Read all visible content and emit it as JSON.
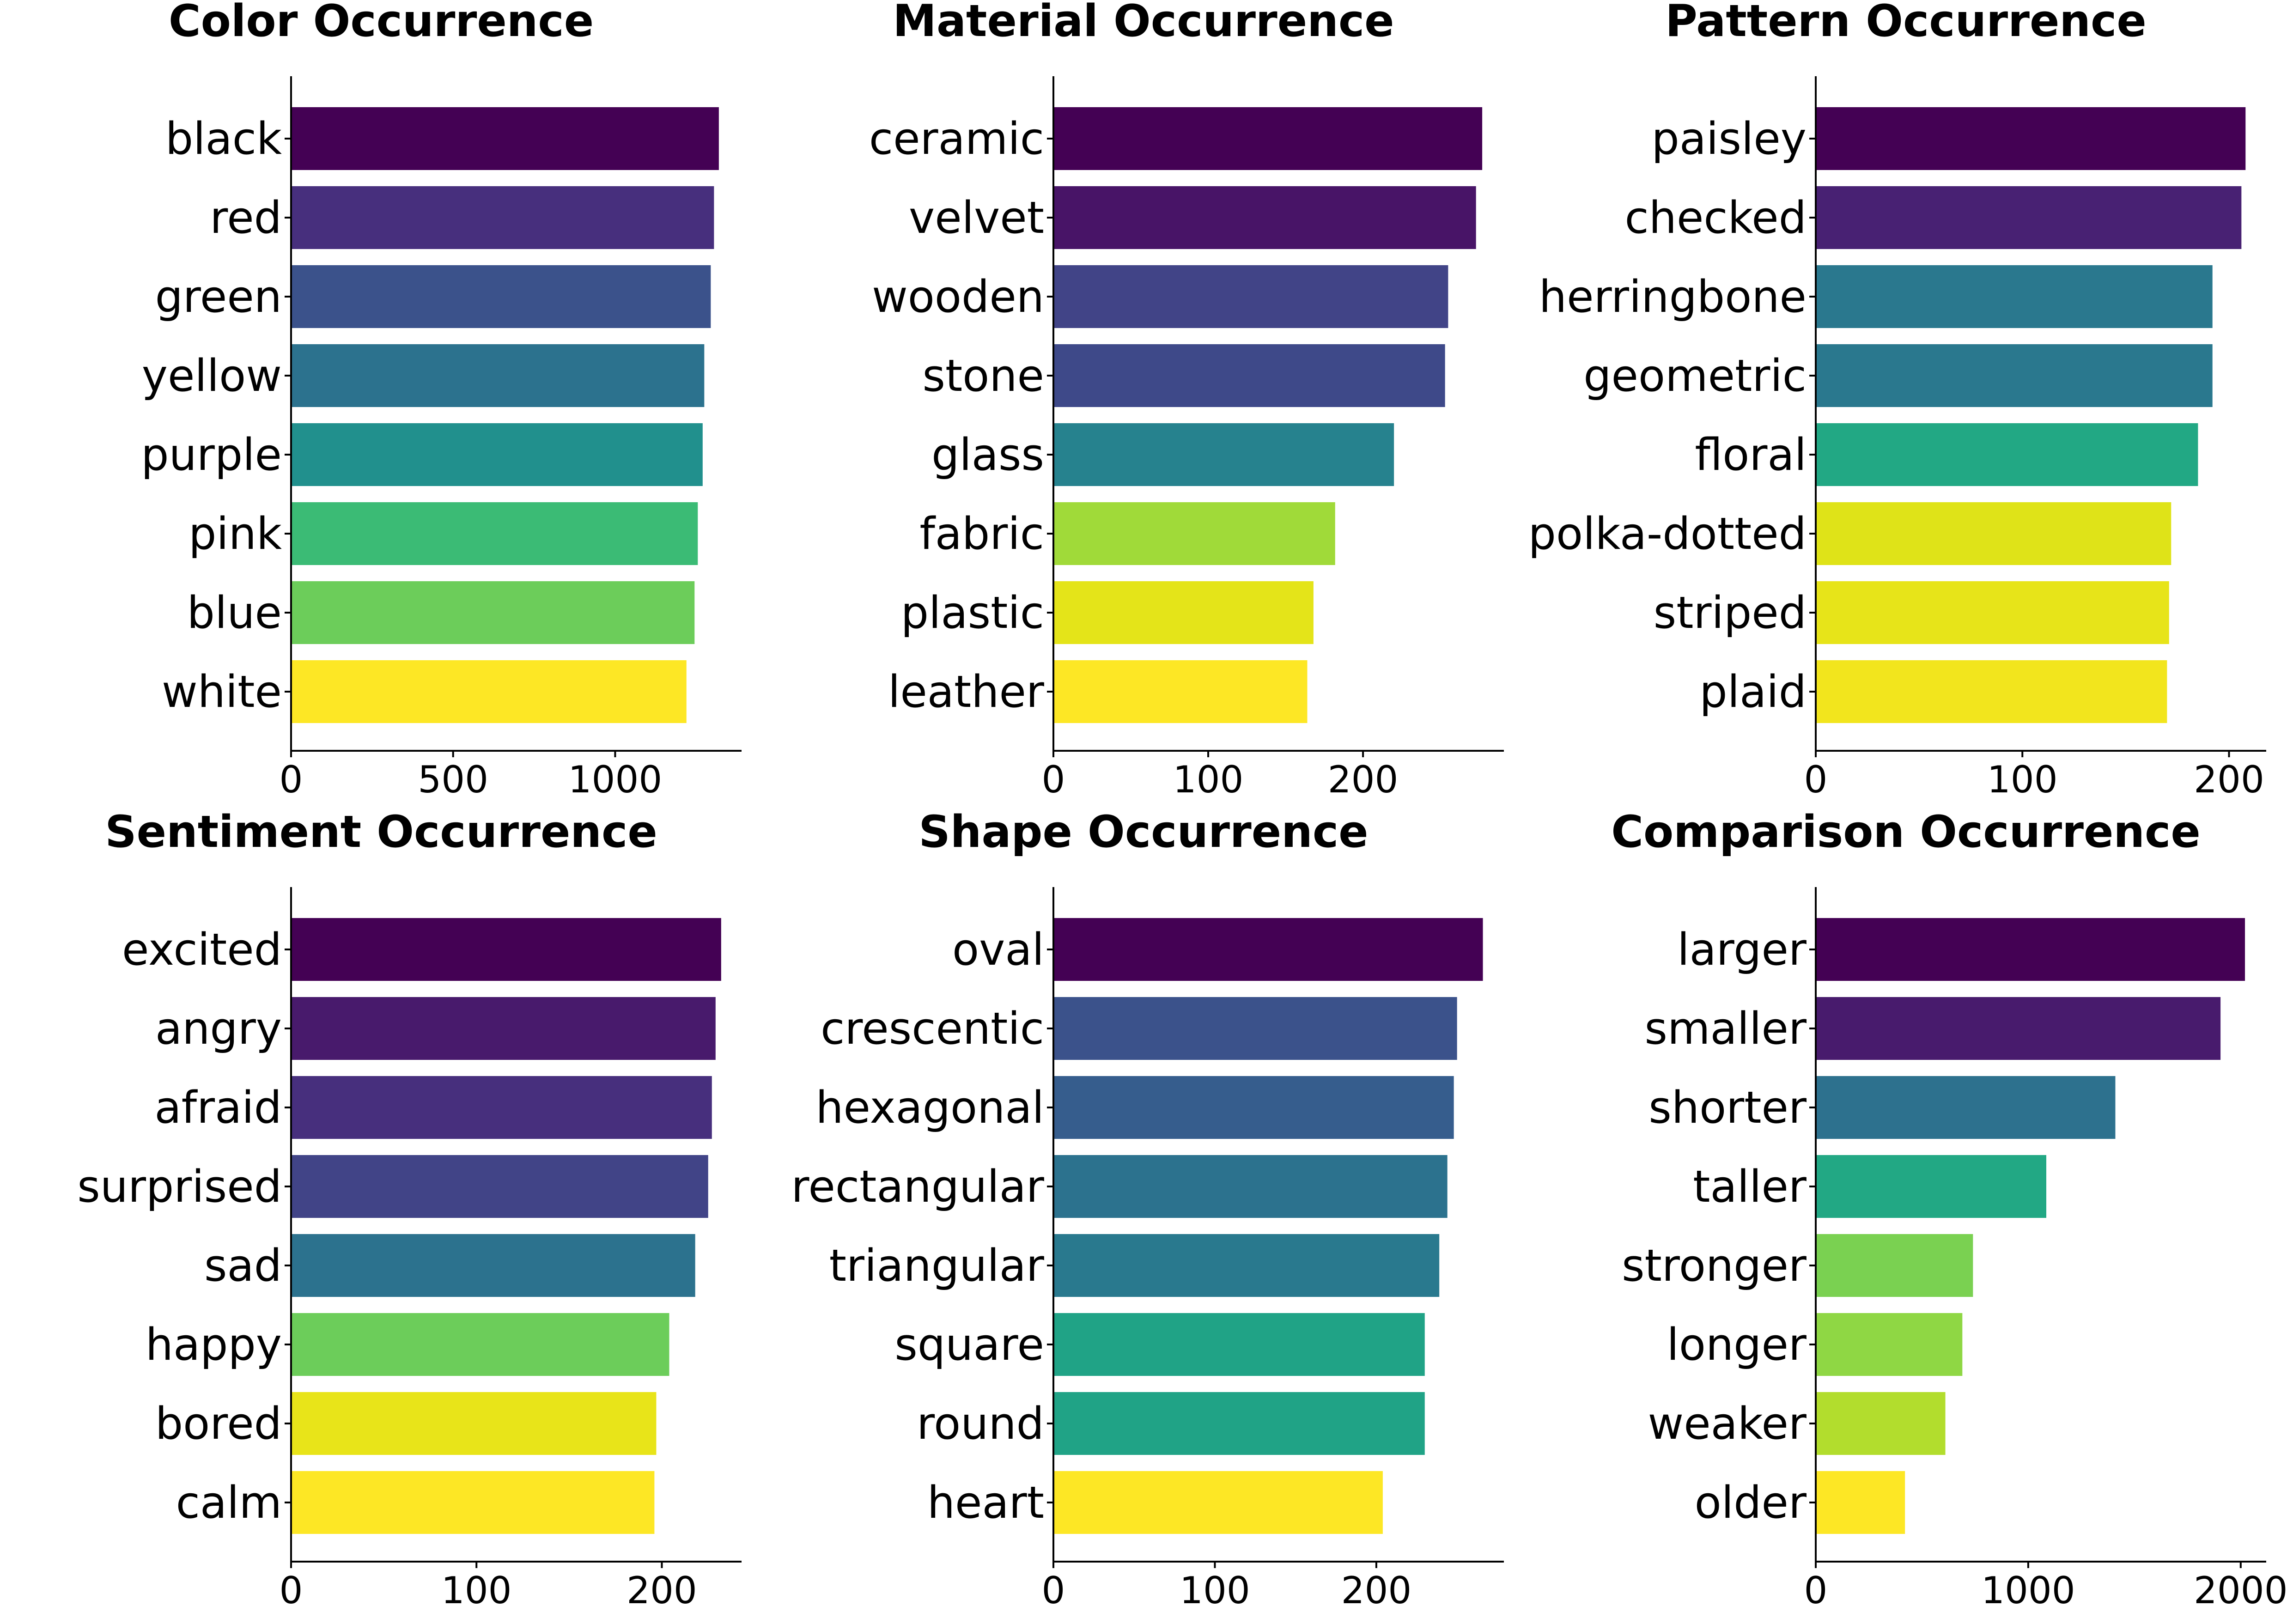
{
  "chart_data": [
    {
      "type": "bar",
      "orientation": "horizontal",
      "title": "Color Occurrence",
      "categories": [
        "black",
        "red",
        "green",
        "yellow",
        "purple",
        "pink",
        "blue",
        "white"
      ],
      "values": [
        1320,
        1305,
        1295,
        1275,
        1270,
        1255,
        1245,
        1220
      ],
      "xlim": [
        0,
        1390
      ],
      "xticks": [
        0,
        500,
        1000
      ],
      "colors": [
        "#440154",
        "#472f7d",
        "#3b528b",
        "#2c728e",
        "#21908d",
        "#3bbb75",
        "#6ccd5a",
        "#fde725"
      ],
      "grid": false
    },
    {
      "type": "bar",
      "orientation": "horizontal",
      "title": "Material Occurrence",
      "categories": [
        "ceramic",
        "velvet",
        "wooden",
        "stone",
        "glass",
        "fabric",
        "plastic",
        "leather"
      ],
      "values": [
        277,
        273,
        255,
        253,
        220,
        182,
        168,
        164
      ],
      "xlim": [
        0,
        291
      ],
      "xticks": [
        0,
        100,
        200
      ],
      "colors": [
        "#440154",
        "#481467",
        "#414487",
        "#3e4989",
        "#26828e",
        "#a0da39",
        "#e4e419",
        "#fde725"
      ],
      "grid": false
    },
    {
      "type": "bar",
      "orientation": "horizontal",
      "title": "Pattern Occurrence",
      "categories": [
        "paisley",
        "checked",
        "herringbone",
        "geometric",
        "floral",
        "polka-dotted",
        "striped",
        "plaid"
      ],
      "values": [
        208,
        206,
        192,
        192,
        185,
        172,
        171,
        170
      ],
      "xlim": [
        0,
        218
      ],
      "xticks": [
        0,
        100,
        200
      ],
      "colors": [
        "#440154",
        "#482173",
        "#2a788e",
        "#2a788e",
        "#22a884",
        "#dfe318",
        "#e7e419",
        "#f2e51d"
      ],
      "grid": false
    },
    {
      "type": "bar",
      "orientation": "horizontal",
      "title": "Sentiment Occurrence",
      "categories": [
        "excited",
        "angry",
        "afraid",
        "surprised",
        "sad",
        "happy",
        "bored",
        "calm"
      ],
      "values": [
        232,
        229,
        227,
        225,
        218,
        204,
        197,
        196
      ],
      "xlim": [
        0,
        243
      ],
      "xticks": [
        0,
        100,
        200
      ],
      "colors": [
        "#440154",
        "#481a6c",
        "#472f7d",
        "#414487",
        "#2c728e",
        "#6ccd5a",
        "#e8e419",
        "#fde725"
      ],
      "grid": false
    },
    {
      "type": "bar",
      "orientation": "horizontal",
      "title": "Shape Occurrence",
      "categories": [
        "oval",
        "crescentic",
        "hexagonal",
        "rectangular",
        "triangular",
        "square",
        "round",
        "heart"
      ],
      "values": [
        266,
        250,
        248,
        244,
        239,
        230,
        230,
        204
      ],
      "xlim": [
        0,
        279
      ],
      "xticks": [
        0,
        100,
        200
      ],
      "colors": [
        "#440154",
        "#3b528b",
        "#365d8d",
        "#2c728e",
        "#29798e",
        "#20a386",
        "#20a386",
        "#fde725"
      ],
      "grid": false
    },
    {
      "type": "bar",
      "orientation": "horizontal",
      "title": "Comparison Occurrence",
      "categories": [
        "larger",
        "smaller",
        "shorter",
        "taller",
        "stronger",
        "longer",
        "weaker",
        "older"
      ],
      "values": [
        2020,
        1905,
        1410,
        1085,
        740,
        690,
        610,
        420
      ],
      "xlim": [
        0,
        2120
      ],
      "xticks": [
        0,
        1000,
        2000
      ],
      "colors": [
        "#440154",
        "#481b6d",
        "#2d718e",
        "#22a884",
        "#7ad151",
        "#8fd744",
        "#b2dd2d",
        "#fde725"
      ],
      "grid": false
    }
  ]
}
